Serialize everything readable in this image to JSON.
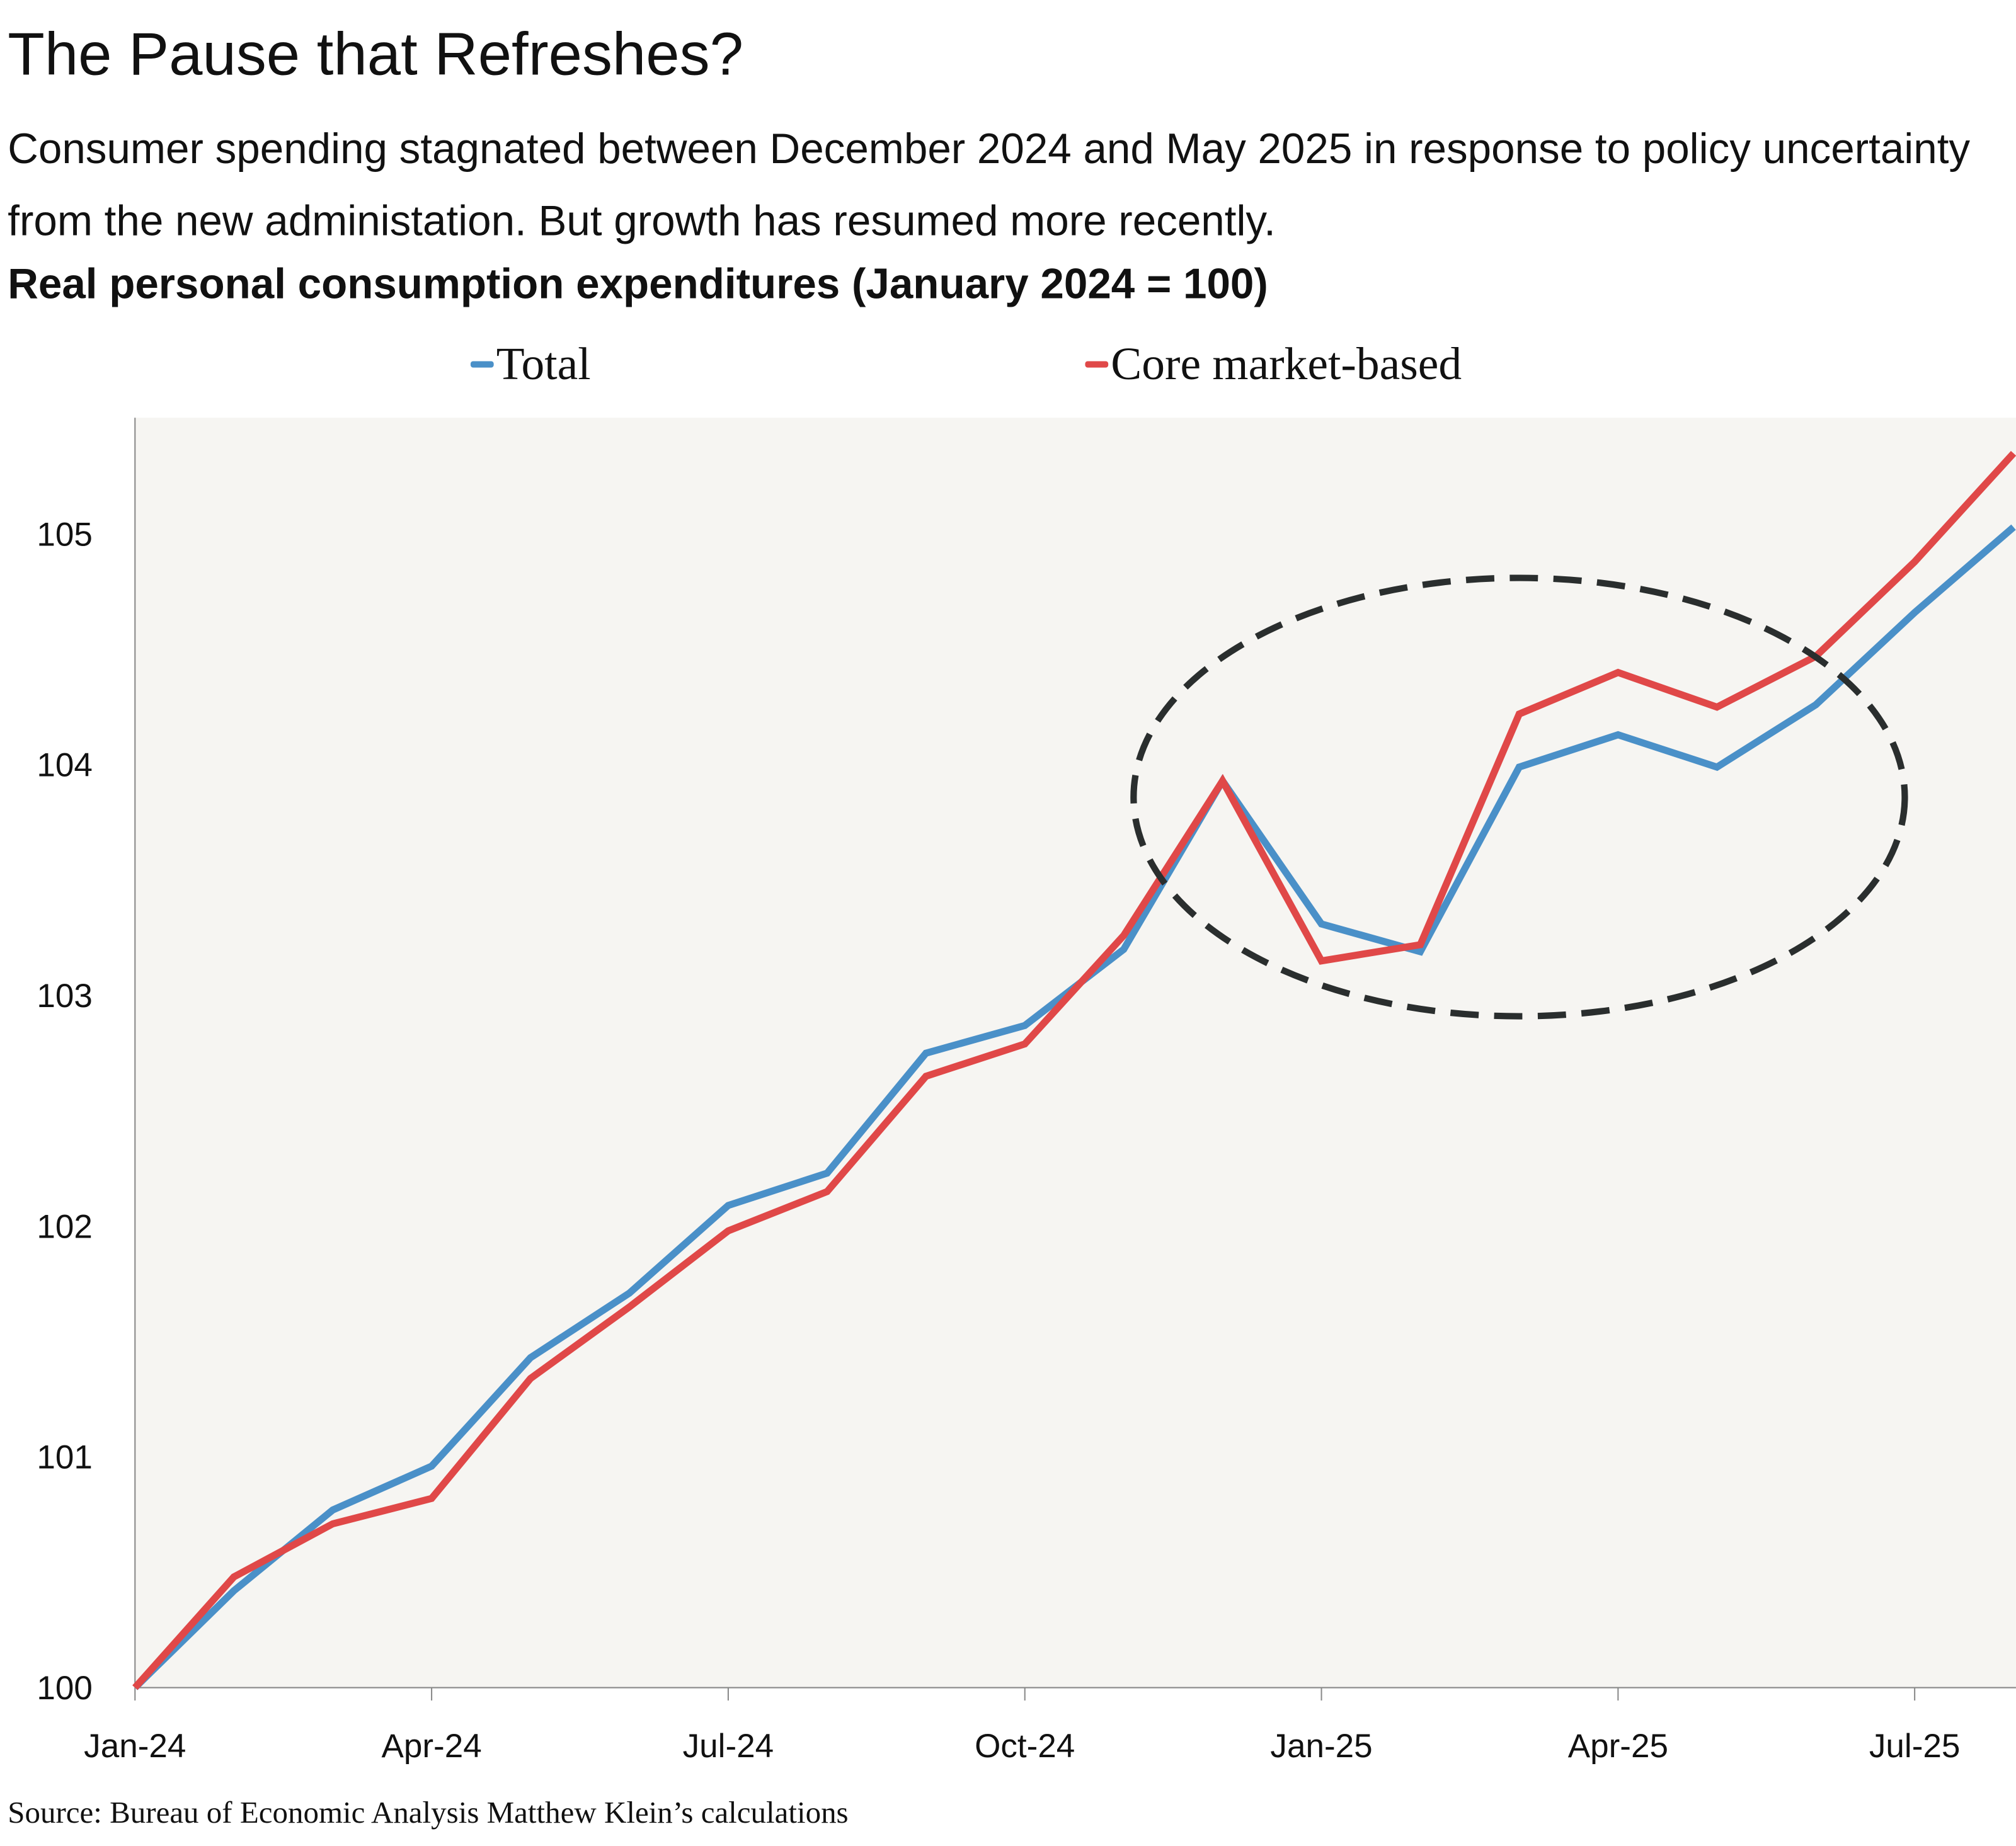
{
  "title": "The Pause that Refreshes?",
  "subtitle": "Consumer spending stagnated between December 2024 and May 2025 in response to policy uncertainty from the new administation. But growth has resumed more recently.",
  "source": "Source: Bureau of Economic Analysis Matthew Klein’s calculations",
  "chart_data": {
    "type": "line",
    "title": "Real personal consumption expenditures (January 2024 = 100)",
    "xlabel": "",
    "ylabel": "",
    "ylim": [
      100,
      105.5
    ],
    "grid": false,
    "legend_placement": "top",
    "x": [
      "Jan-24",
      "Feb-24",
      "Mar-24",
      "Apr-24",
      "May-24",
      "Jun-24",
      "Jul-24",
      "Aug-24",
      "Sep-24",
      "Oct-24",
      "Nov-24",
      "Dec-24",
      "Jan-25",
      "Feb-25",
      "Mar-25",
      "Apr-25",
      "May-25",
      "Jun-25",
      "Jul-25",
      "Aug-25"
    ],
    "x_ticks": [
      "Jan-24",
      "Apr-24",
      "Jul-24",
      "Oct-24",
      "Jan-25",
      "Apr-25",
      "Jul-25"
    ],
    "y_ticks": [
      "100",
      "101",
      "102",
      "103",
      "104",
      "105"
    ],
    "series": [
      {
        "name": "Total",
        "color": "#4a90c8",
        "values": [
          100,
          100.42,
          100.77,
          100.96,
          101.43,
          101.71,
          102.09,
          102.23,
          102.75,
          102.87,
          103.2,
          103.93,
          103.31,
          103.19,
          103.99,
          104.13,
          103.99,
          104.26,
          104.66,
          105.03
        ]
      },
      {
        "name": "Core market-based",
        "color": "#e04848",
        "values": [
          100,
          100.48,
          100.71,
          100.82,
          101.34,
          101.65,
          101.98,
          102.15,
          102.65,
          102.79,
          103.26,
          103.93,
          103.15,
          103.22,
          104.22,
          104.4,
          104.25,
          104.47,
          104.88,
          105.35
        ]
      }
    ],
    "annotations": [
      {
        "type": "dashed-ellipse",
        "center_x_month_index": 14,
        "center_y": 103.86,
        "radius_months": 3.9,
        "radius_y": 0.95,
        "color": "#2a2e2e"
      }
    ]
  }
}
